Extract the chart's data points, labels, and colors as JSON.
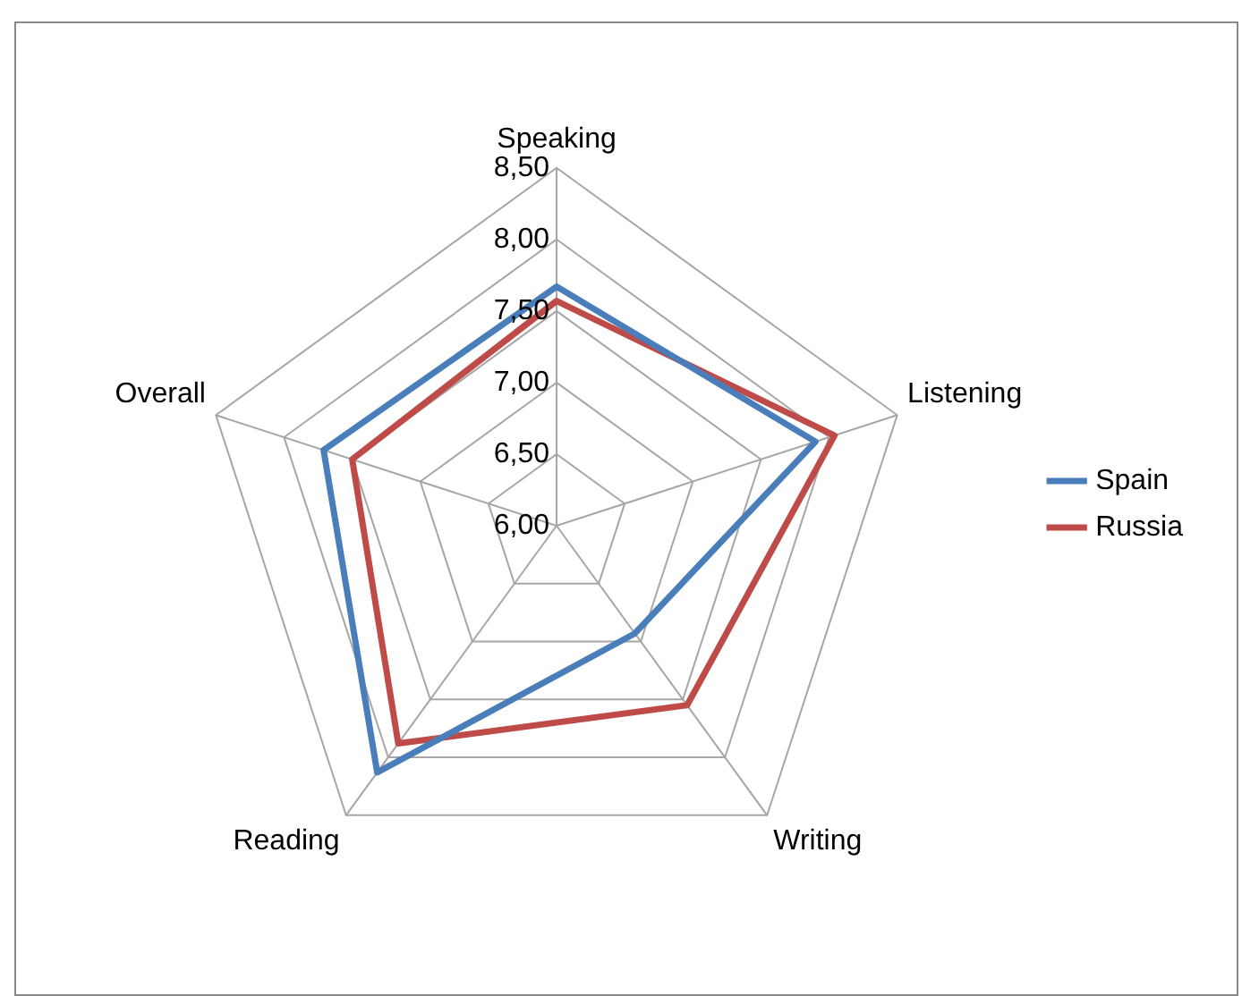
{
  "chart_data": {
    "type": "radar",
    "categories": [
      "Speaking",
      "Listening",
      "Writing",
      "Reading",
      "Overall"
    ],
    "series": [
      {
        "name": "Spain",
        "color": "#4a7ebb",
        "values": [
          7.67,
          7.9,
          6.93,
          8.13,
          7.71
        ]
      },
      {
        "name": "Russia",
        "color": "#be4b48",
        "values": [
          7.57,
          8.04,
          7.55,
          7.88,
          7.5
        ]
      }
    ],
    "ylim": [
      6,
      8.5
    ],
    "yticks": [
      {
        "value": 6,
        "label": "6,00"
      },
      {
        "value": 6.5,
        "label": "6,50"
      },
      {
        "value": 7,
        "label": "7,00"
      },
      {
        "value": 7.5,
        "label": "7,50"
      },
      {
        "value": 8,
        "label": "8,00"
      },
      {
        "value": 8.5,
        "label": "8,50"
      }
    ],
    "grid": true,
    "legend": "right",
    "marker": "none",
    "line_style": "solid"
  }
}
